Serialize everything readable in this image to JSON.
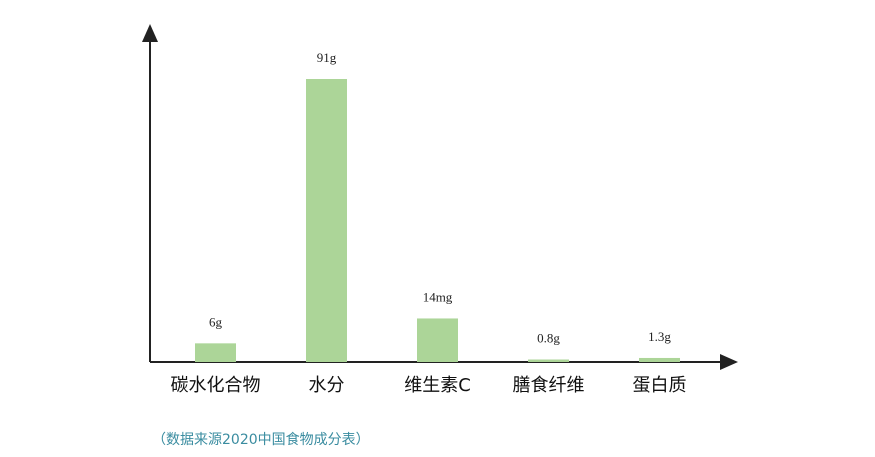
{
  "chart_data": {
    "type": "bar",
    "categories": [
      "碳水化合物",
      "水分",
      "维生素C",
      "膳食纤维",
      "蛋白质"
    ],
    "values": [
      6,
      91,
      14,
      0.8,
      1.3
    ],
    "value_labels": [
      "6g",
      "91g",
      "14mg",
      "0.8g",
      "1.3g"
    ],
    "color": "#acd598",
    "source": "（数据来源2020中国食物成分表）"
  }
}
